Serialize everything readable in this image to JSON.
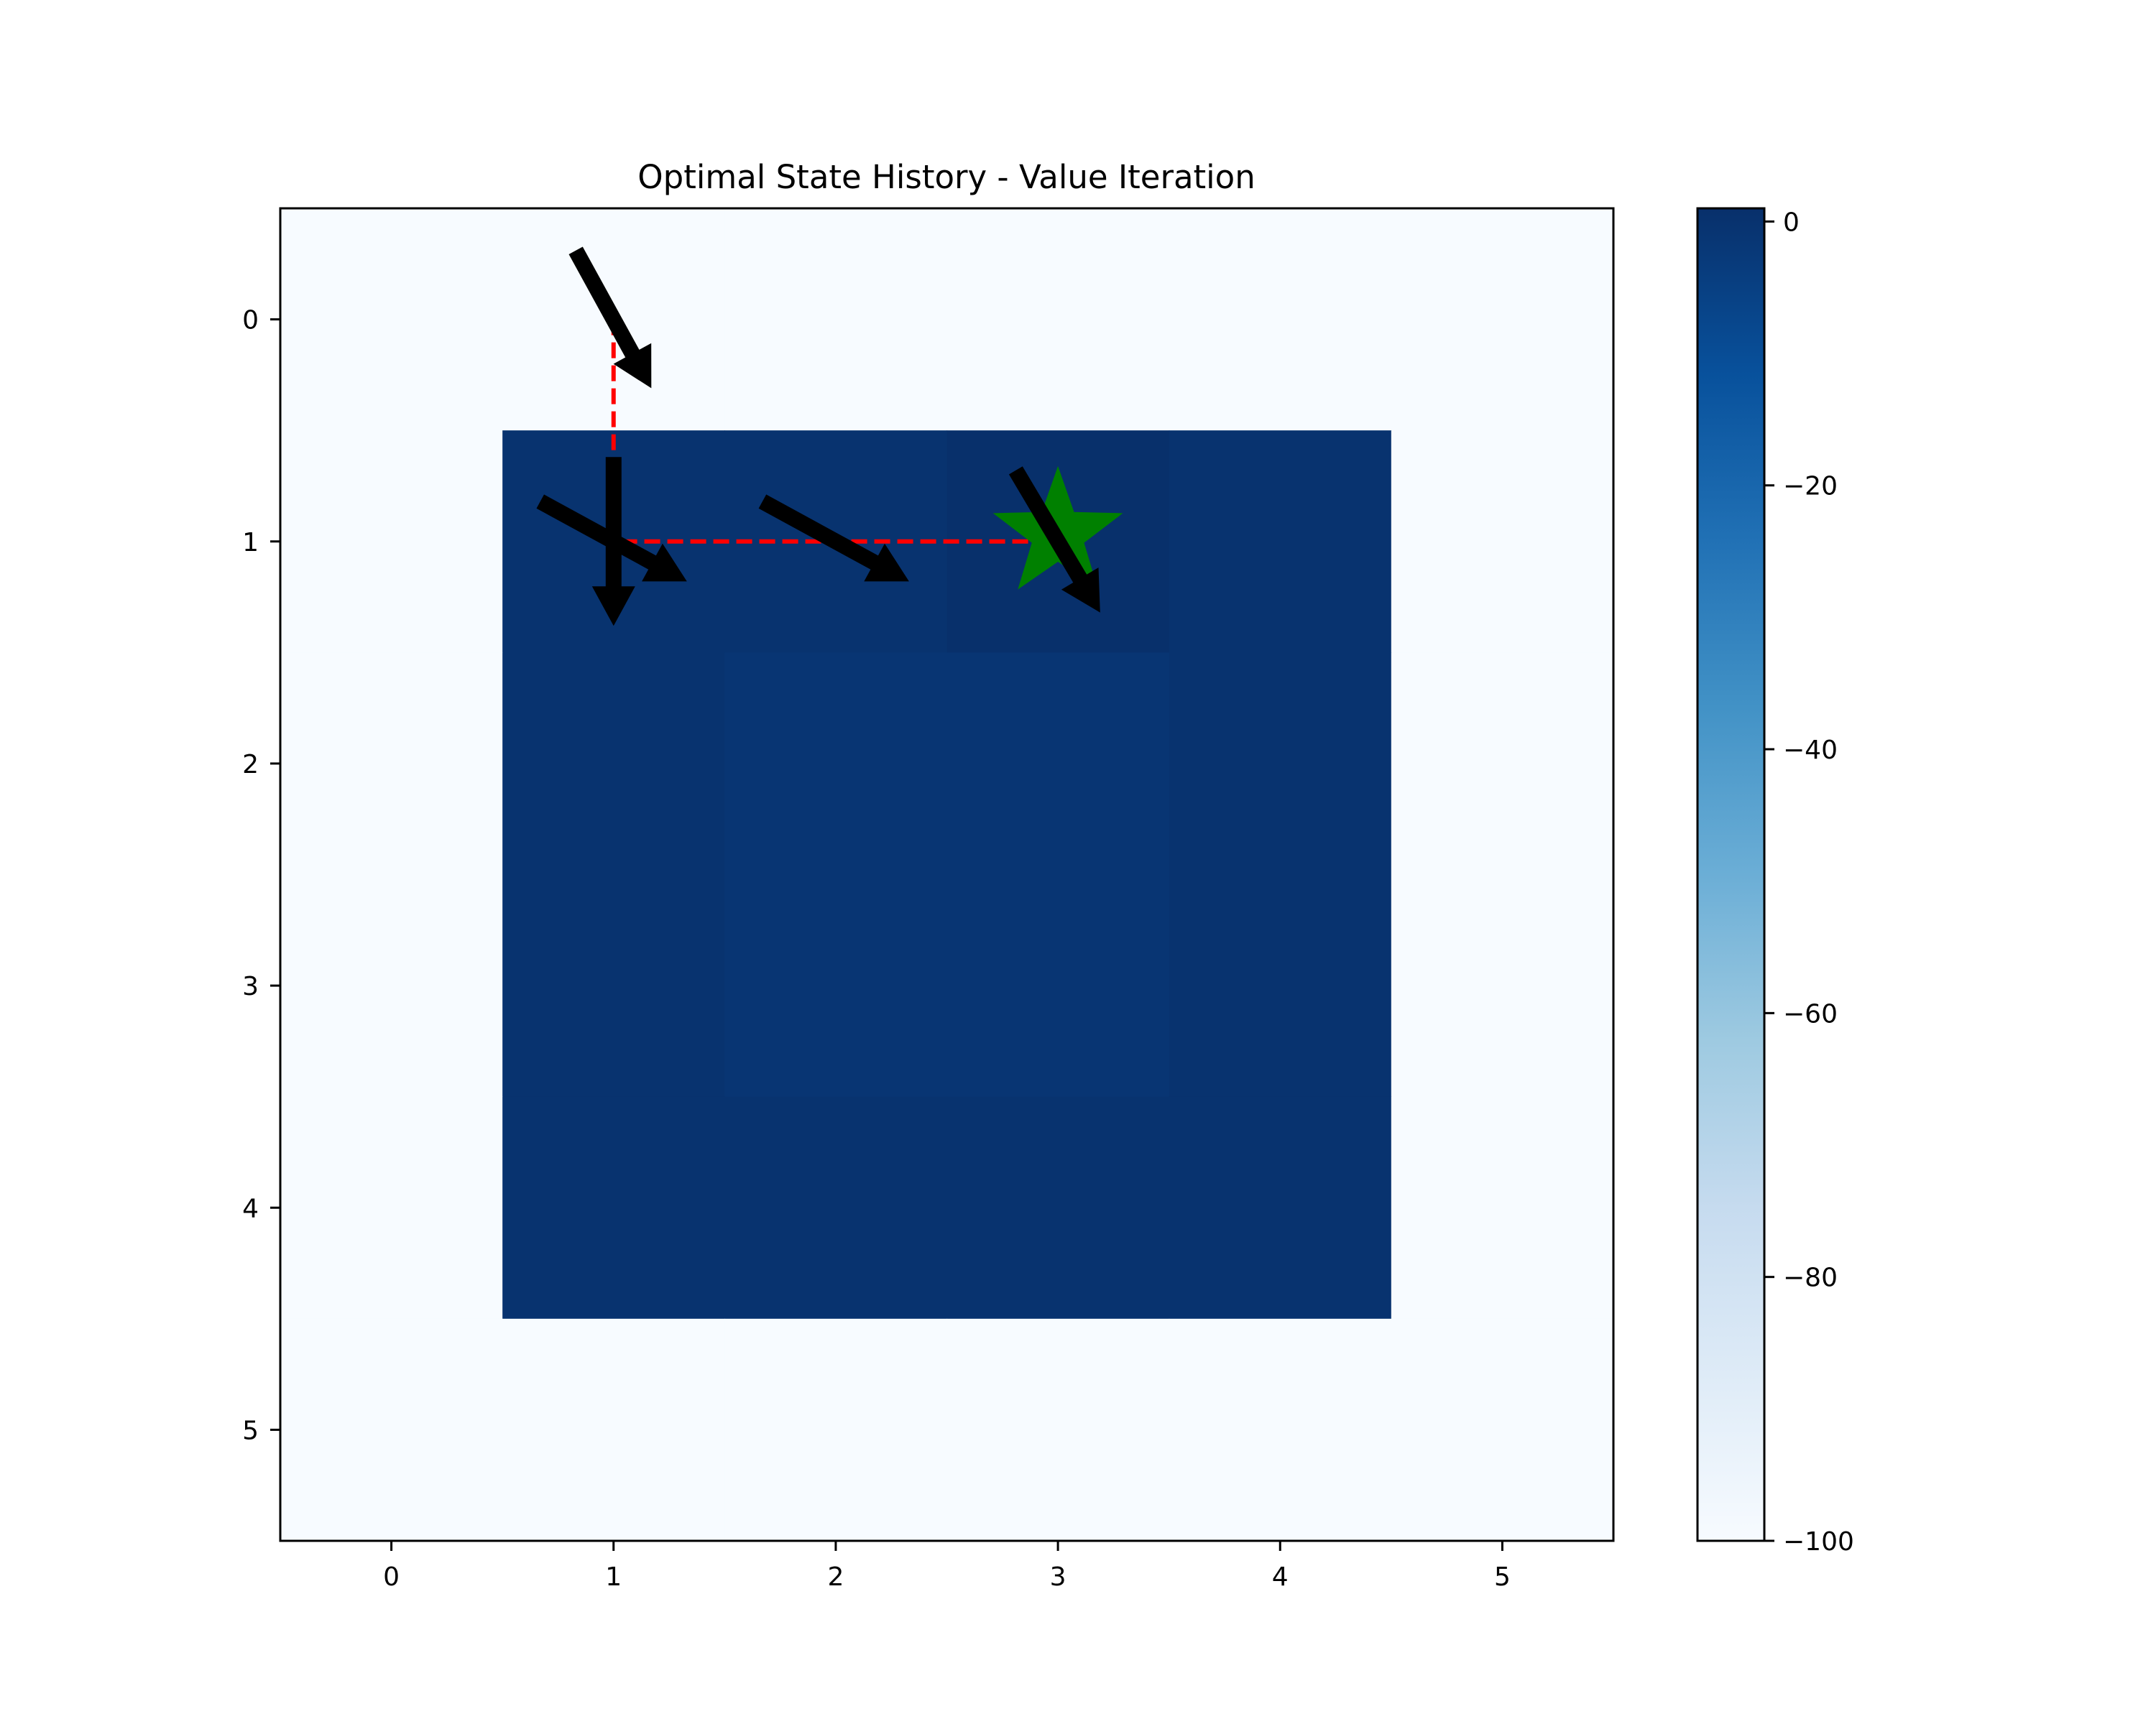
{
  "chart_data": {
    "type": "heatmap",
    "title": "Optimal State History - Value Iteration",
    "xlabel": "",
    "ylabel": "",
    "x_ticks": [
      "0",
      "1",
      "2",
      "3",
      "4",
      "5"
    ],
    "y_ticks": [
      "0",
      "1",
      "2",
      "3",
      "4",
      "5"
    ],
    "xlim": [
      -0.5,
      5.5
    ],
    "ylim": [
      5.5,
      -0.5
    ],
    "colormap": "Blues",
    "vmin": -100,
    "vmax": 1,
    "grid": false,
    "values": [
      [
        -100,
        -100,
        -100,
        -100,
        -100,
        -100
      ],
      [
        -100,
        0,
        0,
        1,
        0,
        -100
      ],
      [
        -100,
        0,
        -1,
        -1,
        0,
        -100
      ],
      [
        -100,
        0,
        -1,
        -1,
        0,
        -100
      ],
      [
        -100,
        0,
        0,
        0,
        0,
        -100
      ],
      [
        -100,
        -100,
        -100,
        -100,
        -100,
        -100
      ]
    ],
    "colorbar": {
      "ticks": [
        "0",
        "−20",
        "−40",
        "−60",
        "−80",
        "−100"
      ],
      "tick_values": [
        0,
        -20,
        -40,
        -60,
        -80,
        -100
      ]
    },
    "path": {
      "color": "#ff0000",
      "points": [
        [
          1,
          0
        ],
        [
          1,
          1
        ],
        [
          2,
          1
        ],
        [
          3,
          1
        ]
      ]
    },
    "goal": {
      "x": 3,
      "y": 1,
      "marker": "star",
      "color": "#008000"
    },
    "policy_arrows": [
      {
        "x": 1,
        "y": 0,
        "dx": 0.17,
        "dy": 0.31
      },
      {
        "x": 1,
        "y": 1,
        "dx": 0.0,
        "dy": 0.38
      },
      {
        "x": 1,
        "y": 1,
        "dx": 0.33,
        "dy": 0.18
      },
      {
        "x": 2,
        "y": 1,
        "dx": 0.33,
        "dy": 0.18
      },
      {
        "x": 3,
        "y": 1,
        "dx": 0.19,
        "dy": 0.32
      }
    ]
  }
}
